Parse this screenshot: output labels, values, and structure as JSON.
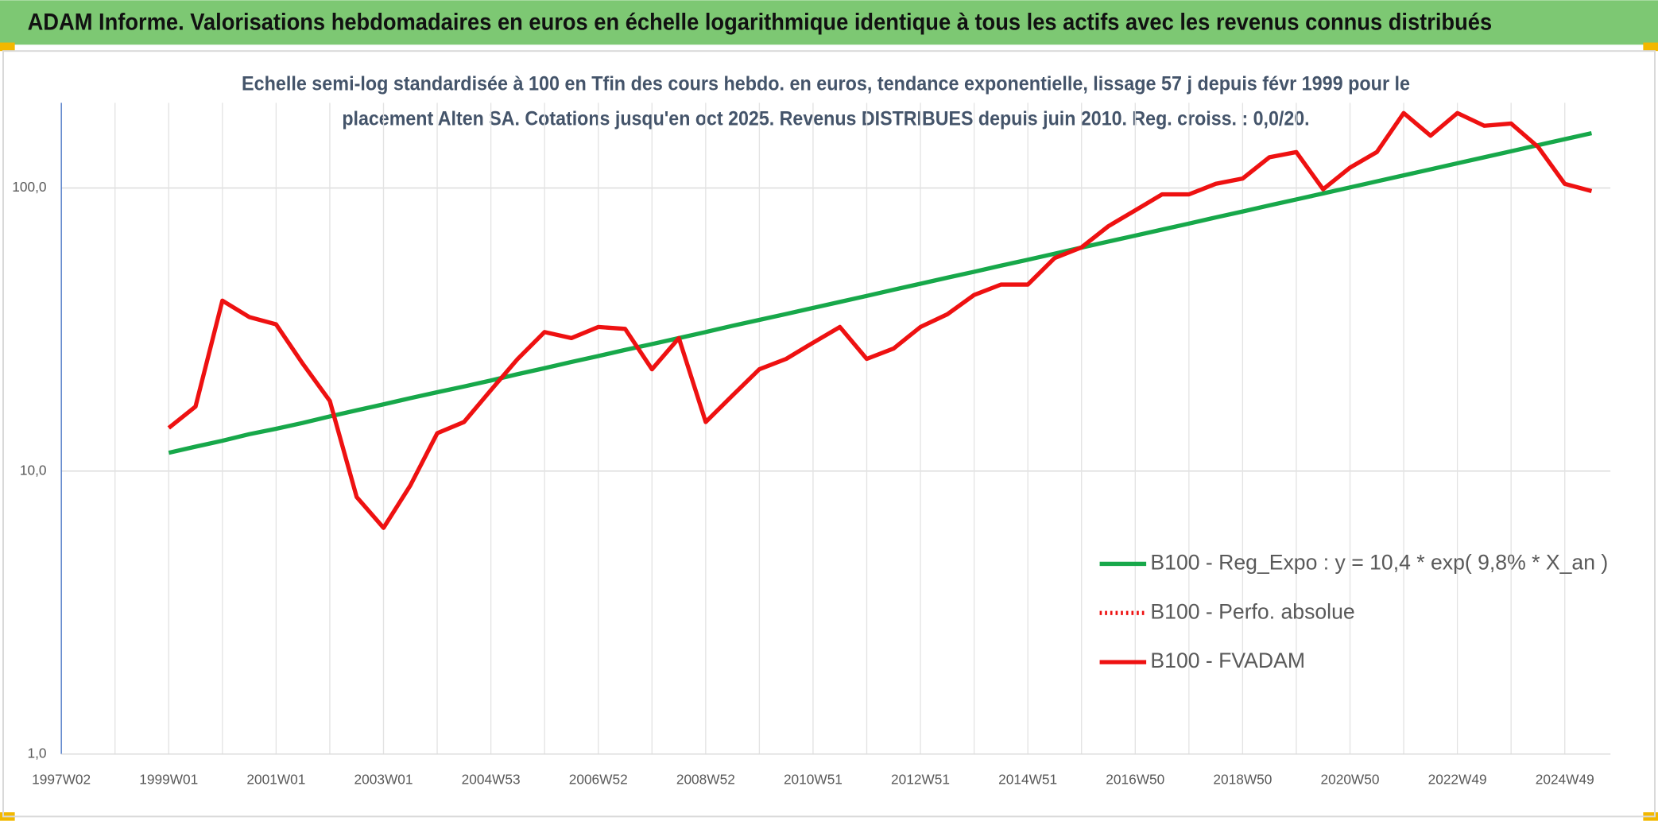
{
  "header": {
    "title": "ADAM Informe. Valorisations hebdomadaires en euros en échelle logarithmique identique à tous les actifs avec les revenus connus distribués"
  },
  "chart_data": {
    "type": "line",
    "subtitle": [
      "Echelle semi-log standardisée à 100 en Tfin des cours hebdo. en euros, tendance exponentielle, lissage 57 j depuis févr 1999 pour le",
      "placement Alten SA. Cotations jusqu'en oct 2025. Revenus DISTRIBUES depuis juin 2010. Reg. croiss. : 0,0/20."
    ],
    "log_scale": true,
    "grid": true,
    "legend": "right",
    "categories": [
      "1997W02",
      null,
      null,
      null,
      "1999W01",
      null,
      null,
      null,
      "2001W01",
      null,
      null,
      null,
      "2003W01",
      null,
      null,
      null,
      "2004W53",
      null,
      null,
      null,
      "2006W52",
      null,
      null,
      null,
      "2008W52",
      null,
      null,
      null,
      "2010W51",
      null,
      null,
      null,
      "2012W51",
      null,
      null,
      null,
      "2014W51",
      null,
      null,
      null,
      "2016W50",
      null,
      null,
      null,
      "2018W50",
      null,
      null,
      null,
      "2020W50",
      null,
      null,
      null,
      "2022W49",
      null,
      null,
      null,
      "2024W49",
      null
    ],
    "ylim": [
      1,
      200
    ],
    "yticks": [
      {
        "value": 1,
        "label": "1,0"
      },
      {
        "value": 10,
        "label": "10,0"
      },
      {
        "value": 100,
        "label": "100,0"
      }
    ],
    "series": [
      {
        "name": "B100 - Reg_Expo : y = 10,4 * exp( 9,8% *  X_an )",
        "color": "#17a84a",
        "dash": "solid",
        "values": [
          null,
          null,
          null,
          null,
          11.6,
          12.2,
          12.8,
          13.5,
          14.1,
          14.8,
          15.6,
          16.4,
          17.2,
          18.1,
          19.0,
          19.9,
          20.9,
          22.0,
          23.1,
          24.3,
          25.5,
          26.8,
          28.1,
          29.5,
          31.0,
          32.6,
          34.2,
          35.9,
          37.7,
          39.6,
          41.6,
          43.7,
          45.9,
          48.2,
          50.6,
          53.2,
          55.8,
          58.6,
          61.6,
          64.7,
          67.9,
          71.3,
          74.9,
          78.7,
          82.6,
          86.8,
          91.1,
          95.7,
          100.5,
          105.6,
          110.9,
          116.4,
          122.3,
          128.4,
          134.9,
          141.6,
          148.8,
          156.2
        ]
      },
      {
        "name": "B100 - Perfo. absolue",
        "color": "#ee1111",
        "dash": "dotted",
        "values": [
          null,
          null,
          null,
          null,
          null,
          null,
          null,
          null,
          null,
          null,
          null,
          null,
          null,
          null,
          null,
          null,
          null,
          null,
          null,
          null,
          null,
          null,
          null,
          null,
          null,
          null,
          null,
          null,
          null,
          null,
          null,
          null,
          null,
          null,
          null,
          null,
          null,
          null,
          null,
          null,
          null,
          null,
          null,
          null,
          null,
          null,
          null,
          null,
          null,
          null,
          null,
          null,
          null,
          null,
          null,
          null,
          null,
          null
        ]
      },
      {
        "name": "B100 - FVADAM",
        "color": "#ee1111",
        "dash": "solid",
        "values": [
          null,
          null,
          null,
          null,
          14.2,
          16.9,
          40,
          35,
          33,
          23.9,
          17.7,
          8.1,
          6.3,
          8.9,
          13.6,
          14.9,
          19.3,
          24.9,
          31,
          29.5,
          32.3,
          31.8,
          22.9,
          29.5,
          14.9,
          18.5,
          22.9,
          24.9,
          28.4,
          32.3,
          24.9,
          27.1,
          32.3,
          35.8,
          41.9,
          45.6,
          45.6,
          56.6,
          61.7,
          73.3,
          83.4,
          95,
          95,
          103.5,
          108,
          128.4,
          134,
          99,
          118,
          134,
          184,
          153,
          184,
          166,
          169,
          140,
          103.5,
          97.5
        ]
      }
    ]
  }
}
